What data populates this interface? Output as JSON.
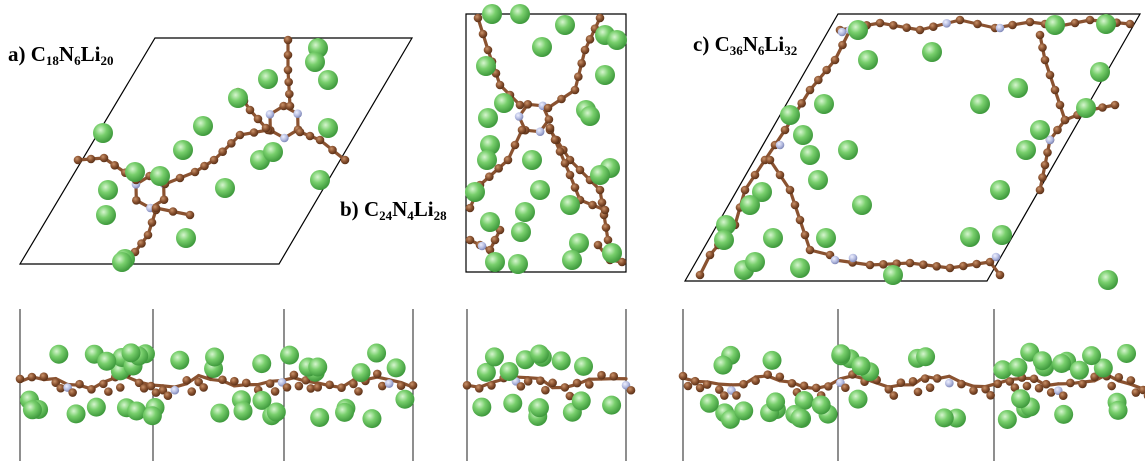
{
  "panels": [
    {
      "id": "a",
      "letter": "a)",
      "formula": [
        [
          "C",
          "18"
        ],
        [
          "N",
          "6"
        ],
        [
          "Li",
          "20"
        ]
      ]
    },
    {
      "id": "b",
      "letter": "b)",
      "formula": [
        [
          "C",
          "24"
        ],
        [
          "N",
          "4"
        ],
        [
          "Li",
          "28"
        ]
      ]
    },
    {
      "id": "c",
      "letter": "c)",
      "formula": [
        [
          "C",
          "36"
        ],
        [
          "N",
          "6"
        ],
        [
          "Li",
          "32"
        ]
      ]
    }
  ],
  "colors": {
    "carbon": "#8a5230",
    "bond": "#8a5230",
    "nitrogen": "#b4bbe0",
    "lithium": "#66c266",
    "cell_line": "#000000"
  }
}
